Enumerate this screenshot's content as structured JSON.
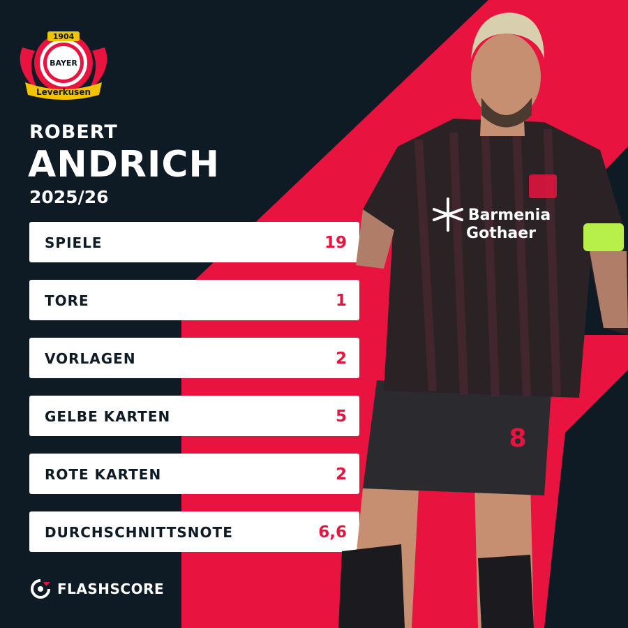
{
  "colors": {
    "background": "#0e1a24",
    "accent": "#e8143f",
    "card": "#ffffff",
    "text_dark": "#0e1a24",
    "value": "#e8143f"
  },
  "club": {
    "logo_year": "1904",
    "logo_letters_h": "BAYER",
    "logo_letters_v": "BAYER",
    "logo_banner": "Leverkusen"
  },
  "player": {
    "first_name": "ROBERT",
    "last_name": "ANDRICH",
    "season": "2025/26",
    "shirt_number": "8",
    "sponsor_line1": "Barmenia",
    "sponsor_line2": "Gothaer"
  },
  "stats": [
    {
      "label": "SPIELE",
      "value": "19"
    },
    {
      "label": "TORE",
      "value": "1"
    },
    {
      "label": "VORLAGEN",
      "value": "2"
    },
    {
      "label": "GELBE KARTEN",
      "value": "5"
    },
    {
      "label": "ROTE KARTEN",
      "value": "2"
    },
    {
      "label": "DURCHSCHNITTSNOTE",
      "value": "6,6"
    }
  ],
  "brand": {
    "name": "FLASHSCORE",
    "icon": "flashscore-icon"
  }
}
